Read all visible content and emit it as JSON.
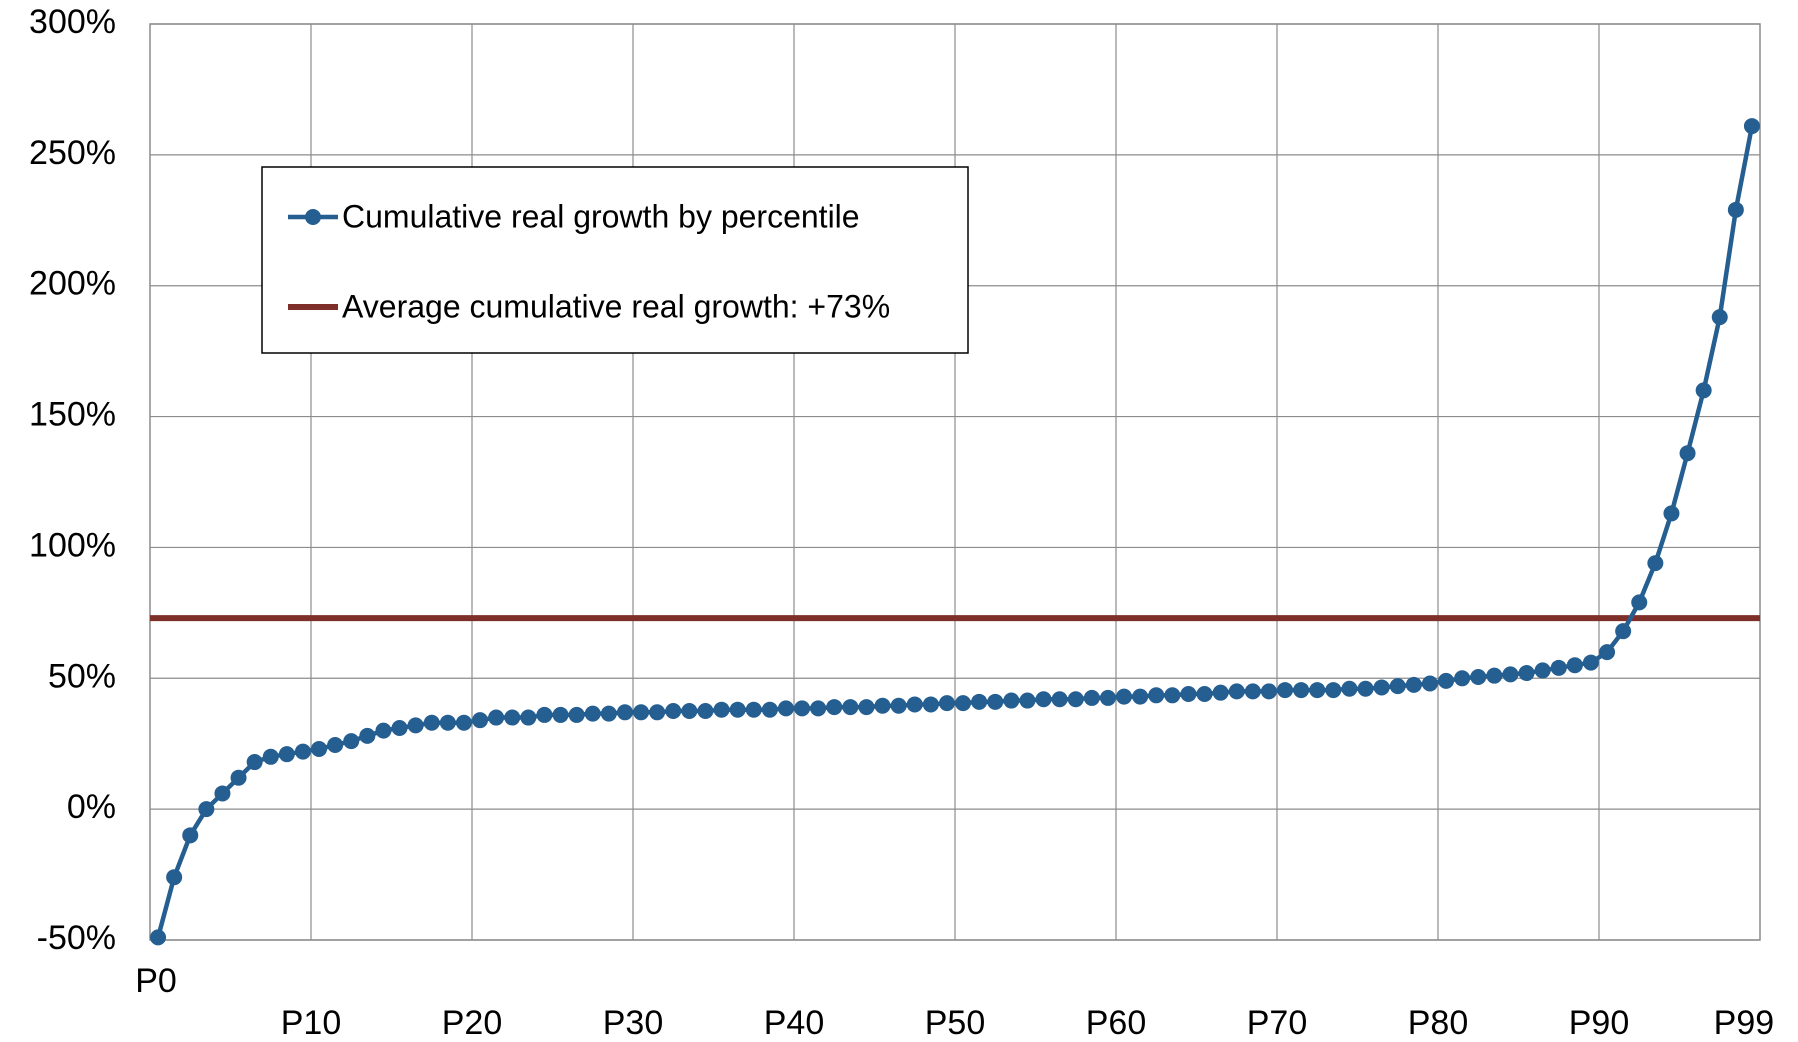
{
  "chart_data": {
    "type": "line",
    "categories": [
      "P0",
      null,
      null,
      null,
      null,
      null,
      null,
      null,
      null,
      null,
      "P10",
      null,
      null,
      null,
      null,
      null,
      null,
      null,
      null,
      null,
      "P20",
      null,
      null,
      null,
      null,
      null,
      null,
      null,
      null,
      null,
      "P30",
      null,
      null,
      null,
      null,
      null,
      null,
      null,
      null,
      null,
      "P40",
      null,
      null,
      null,
      null,
      null,
      null,
      null,
      null,
      null,
      "P50",
      null,
      null,
      null,
      null,
      null,
      null,
      null,
      null,
      null,
      "P60",
      null,
      null,
      null,
      null,
      null,
      null,
      null,
      null,
      null,
      "P70",
      null,
      null,
      null,
      null,
      null,
      null,
      null,
      null,
      null,
      "P80",
      null,
      null,
      null,
      null,
      null,
      null,
      null,
      null,
      null,
      "P90",
      null,
      null,
      null,
      null,
      null,
      null,
      null,
      null,
      "P99"
    ],
    "series": [
      {
        "name": "Cumulative real growth by percentile",
        "color": "#255e91",
        "values": [
          -49,
          -26,
          -10,
          0,
          6,
          12,
          18,
          20,
          21,
          22,
          23,
          24.5,
          26,
          28,
          30,
          31,
          32,
          33,
          33,
          33,
          34,
          35,
          35,
          35,
          36,
          36,
          36,
          36.5,
          36.5,
          37,
          37,
          37,
          37.5,
          37.5,
          37.5,
          38,
          38,
          38,
          38,
          38.5,
          38.5,
          38.5,
          39,
          39,
          39,
          39.5,
          39.5,
          40,
          40,
          40.5,
          40.5,
          41,
          41,
          41.5,
          41.5,
          42,
          42,
          42,
          42.5,
          42.5,
          43,
          43,
          43.5,
          43.5,
          44,
          44,
          44.5,
          45,
          45,
          45,
          45.5,
          45.5,
          45.5,
          45.5,
          46,
          46,
          46.5,
          47,
          47.5,
          48,
          49,
          50,
          50.5,
          51,
          51.5,
          52,
          53,
          54,
          55,
          56,
          60,
          68,
          79,
          94,
          113,
          136,
          160,
          188,
          229,
          261
        ]
      }
    ],
    "reference_line": {
      "name": "Average cumulative real growth: +73%",
      "value": 73,
      "color": "#7f2f2a"
    },
    "ylim": [
      -50,
      300
    ],
    "yticks": [
      {
        "value": -50,
        "label": "-50%"
      },
      {
        "value": 0,
        "label": "0%"
      },
      {
        "value": 50,
        "label": "50%"
      },
      {
        "value": 100,
        "label": "100%"
      },
      {
        "value": 150,
        "label": "150%"
      },
      {
        "value": 200,
        "label": "200%"
      },
      {
        "value": 250,
        "label": "250%"
      },
      {
        "value": 300,
        "label": "300%"
      }
    ],
    "grid": true,
    "legend": "upper left"
  }
}
